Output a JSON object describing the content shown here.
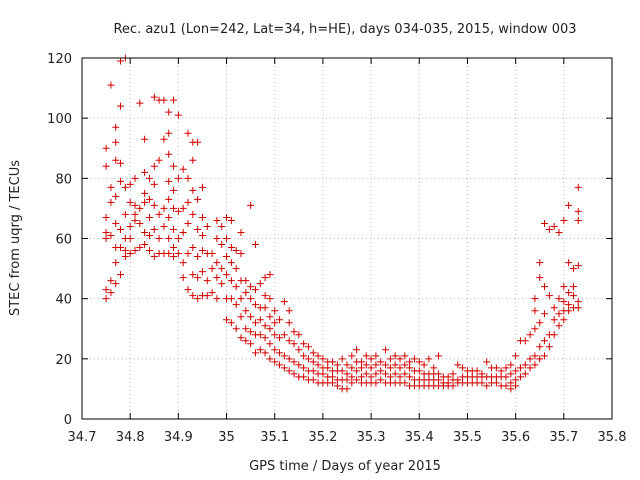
{
  "chart_data": {
    "type": "scatter",
    "title": "Rec. azu1 (Lon=242, Lat=34, h=HE), days 034-035, 2015, window 003",
    "xlabel": "GPS time / Days of year 2015",
    "ylabel": "STEC from uqrg / TECUs",
    "xlim": [
      34.7,
      35.8
    ],
    "ylim": [
      0,
      120
    ],
    "xticks": [
      "34.7",
      "34.8",
      "34.9",
      "35",
      "35.1",
      "35.2",
      "35.3",
      "35.4",
      "35.5",
      "35.6",
      "35.7",
      "35.8"
    ],
    "yticks": [
      "0",
      "20",
      "40",
      "60",
      "80",
      "100",
      "120"
    ],
    "grid": true,
    "marker": "+",
    "color": "#d00000",
    "points": [
      [
        34.75,
        40
      ],
      [
        34.75,
        43
      ],
      [
        34.75,
        60
      ],
      [
        34.75,
        62
      ],
      [
        34.75,
        67
      ],
      [
        34.75,
        84
      ],
      [
        34.75,
        90
      ],
      [
        34.76,
        42
      ],
      [
        34.76,
        46
      ],
      [
        34.76,
        61
      ],
      [
        34.76,
        72
      ],
      [
        34.76,
        77
      ],
      [
        34.76,
        111
      ],
      [
        34.77,
        45
      ],
      [
        34.77,
        52
      ],
      [
        34.77,
        57
      ],
      [
        34.77,
        65
      ],
      [
        34.77,
        74
      ],
      [
        34.77,
        86
      ],
      [
        34.77,
        92
      ],
      [
        34.77,
        97
      ],
      [
        34.78,
        48
      ],
      [
        34.78,
        57
      ],
      [
        34.78,
        63
      ],
      [
        34.78,
        79
      ],
      [
        34.78,
        85
      ],
      [
        34.78,
        104
      ],
      [
        34.78,
        119
      ],
      [
        34.79,
        54
      ],
      [
        34.79,
        56
      ],
      [
        34.79,
        60
      ],
      [
        34.79,
        68
      ],
      [
        34.79,
        77
      ],
      [
        34.79,
        120
      ],
      [
        34.8,
        55
      ],
      [
        34.8,
        60
      ],
      [
        34.8,
        64
      ],
      [
        34.8,
        72
      ],
      [
        34.8,
        78
      ],
      [
        34.81,
        56
      ],
      [
        34.81,
        66
      ],
      [
        34.81,
        68
      ],
      [
        34.81,
        71
      ],
      [
        34.81,
        80
      ],
      [
        34.82,
        57
      ],
      [
        34.82,
        65
      ],
      [
        34.82,
        70
      ],
      [
        34.82,
        105
      ],
      [
        34.83,
        58
      ],
      [
        34.83,
        62
      ],
      [
        34.83,
        72
      ],
      [
        34.83,
        75
      ],
      [
        34.83,
        82
      ],
      [
        34.83,
        93
      ],
      [
        34.84,
        56
      ],
      [
        34.84,
        61
      ],
      [
        34.84,
        67
      ],
      [
        34.84,
        73
      ],
      [
        34.84,
        80
      ],
      [
        34.85,
        54
      ],
      [
        34.85,
        63
      ],
      [
        34.85,
        71
      ],
      [
        34.85,
        78
      ],
      [
        34.85,
        84
      ],
      [
        34.85,
        107
      ],
      [
        34.86,
        55
      ],
      [
        34.86,
        60
      ],
      [
        34.86,
        68
      ],
      [
        34.86,
        86
      ],
      [
        34.86,
        106
      ],
      [
        34.87,
        55
      ],
      [
        34.87,
        64
      ],
      [
        34.87,
        70
      ],
      [
        34.87,
        93
      ],
      [
        34.87,
        106
      ],
      [
        34.88,
        55
      ],
      [
        34.88,
        60
      ],
      [
        34.88,
        67
      ],
      [
        34.88,
        73
      ],
      [
        34.88,
        79
      ],
      [
        34.88,
        88
      ],
      [
        34.88,
        95
      ],
      [
        34.88,
        102
      ],
      [
        34.89,
        54
      ],
      [
        34.89,
        57
      ],
      [
        34.89,
        63
      ],
      [
        34.89,
        70
      ],
      [
        34.89,
        76
      ],
      [
        34.89,
        84
      ],
      [
        34.89,
        106
      ],
      [
        34.9,
        55
      ],
      [
        34.9,
        60
      ],
      [
        34.9,
        69
      ],
      [
        34.9,
        80
      ],
      [
        34.9,
        101
      ],
      [
        34.91,
        47
      ],
      [
        34.91,
        52
      ],
      [
        34.91,
        62
      ],
      [
        34.91,
        70
      ],
      [
        34.91,
        83
      ],
      [
        34.92,
        43
      ],
      [
        34.92,
        55
      ],
      [
        34.92,
        65
      ],
      [
        34.92,
        72
      ],
      [
        34.92,
        80
      ],
      [
        34.92,
        95
      ],
      [
        34.93,
        41
      ],
      [
        34.93,
        48
      ],
      [
        34.93,
        57
      ],
      [
        34.93,
        68
      ],
      [
        34.93,
        76
      ],
      [
        34.93,
        86
      ],
      [
        34.93,
        92
      ],
      [
        34.94,
        40
      ],
      [
        34.94,
        47
      ],
      [
        34.94,
        54
      ],
      [
        34.94,
        63
      ],
      [
        34.94,
        73
      ],
      [
        34.94,
        92
      ],
      [
        34.95,
        41
      ],
      [
        34.95,
        49
      ],
      [
        34.95,
        56
      ],
      [
        34.95,
        61
      ],
      [
        34.95,
        67
      ],
      [
        34.95,
        77
      ],
      [
        34.96,
        41
      ],
      [
        34.96,
        46
      ],
      [
        34.96,
        55
      ],
      [
        34.96,
        64
      ],
      [
        34.97,
        42
      ],
      [
        34.97,
        50
      ],
      [
        34.97,
        55
      ],
      [
        34.98,
        40
      ],
      [
        34.98,
        47
      ],
      [
        34.98,
        52
      ],
      [
        34.98,
        60
      ],
      [
        34.98,
        66
      ],
      [
        34.99,
        45
      ],
      [
        34.99,
        50
      ],
      [
        34.99,
        58
      ],
      [
        34.99,
        64
      ],
      [
        35.0,
        33
      ],
      [
        35.0,
        40
      ],
      [
        35.0,
        48
      ],
      [
        35.0,
        54
      ],
      [
        35.0,
        60
      ],
      [
        35.0,
        67
      ],
      [
        35.01,
        32
      ],
      [
        35.01,
        40
      ],
      [
        35.01,
        46
      ],
      [
        35.01,
        52
      ],
      [
        35.01,
        57
      ],
      [
        35.01,
        66
      ],
      [
        35.02,
        30
      ],
      [
        35.02,
        38
      ],
      [
        35.02,
        44
      ],
      [
        35.02,
        50
      ],
      [
        35.02,
        56
      ],
      [
        35.03,
        27
      ],
      [
        35.03,
        34
      ],
      [
        35.03,
        40
      ],
      [
        35.03,
        46
      ],
      [
        35.03,
        55
      ],
      [
        35.03,
        62
      ],
      [
        35.04,
        26
      ],
      [
        35.04,
        30
      ],
      [
        35.04,
        36
      ],
      [
        35.04,
        42
      ],
      [
        35.04,
        46
      ],
      [
        35.05,
        25
      ],
      [
        35.05,
        29
      ],
      [
        35.05,
        34
      ],
      [
        35.05,
        40
      ],
      [
        35.05,
        44
      ],
      [
        35.05,
        71
      ],
      [
        35.06,
        22
      ],
      [
        35.06,
        28
      ],
      [
        35.06,
        32
      ],
      [
        35.06,
        38
      ],
      [
        35.06,
        43
      ],
      [
        35.06,
        58
      ],
      [
        35.07,
        23
      ],
      [
        35.07,
        28
      ],
      [
        35.07,
        33
      ],
      [
        35.07,
        37
      ],
      [
        35.07,
        45
      ],
      [
        35.08,
        22
      ],
      [
        35.08,
        27
      ],
      [
        35.08,
        31
      ],
      [
        35.08,
        37
      ],
      [
        35.08,
        41
      ],
      [
        35.08,
        47
      ],
      [
        35.09,
        20
      ],
      [
        35.09,
        25
      ],
      [
        35.09,
        30
      ],
      [
        35.09,
        34
      ],
      [
        35.09,
        40
      ],
      [
        35.09,
        48
      ],
      [
        35.1,
        19
      ],
      [
        35.1,
        23
      ],
      [
        35.1,
        28
      ],
      [
        35.1,
        32
      ],
      [
        35.1,
        36
      ],
      [
        35.11,
        18
      ],
      [
        35.11,
        22
      ],
      [
        35.11,
        27
      ],
      [
        35.11,
        33
      ],
      [
        35.12,
        17
      ],
      [
        35.12,
        21
      ],
      [
        35.12,
        28
      ],
      [
        35.12,
        39
      ],
      [
        35.13,
        16
      ],
      [
        35.13,
        20
      ],
      [
        35.13,
        26
      ],
      [
        35.13,
        32
      ],
      [
        35.13,
        36
      ],
      [
        35.14,
        15
      ],
      [
        35.14,
        19
      ],
      [
        35.14,
        25
      ],
      [
        35.14,
        29
      ],
      [
        35.15,
        14
      ],
      [
        35.15,
        18
      ],
      [
        35.15,
        23
      ],
      [
        35.15,
        28
      ],
      [
        35.16,
        14
      ],
      [
        35.16,
        17
      ],
      [
        35.16,
        21
      ],
      [
        35.16,
        25
      ],
      [
        35.17,
        13
      ],
      [
        35.17,
        16
      ],
      [
        35.17,
        20
      ],
      [
        35.17,
        24
      ],
      [
        35.18,
        13
      ],
      [
        35.18,
        16
      ],
      [
        35.18,
        19
      ],
      [
        35.18,
        22
      ],
      [
        35.19,
        12
      ],
      [
        35.19,
        15
      ],
      [
        35.19,
        18
      ],
      [
        35.19,
        21
      ],
      [
        35.2,
        12
      ],
      [
        35.2,
        15
      ],
      [
        35.2,
        17
      ],
      [
        35.2,
        20
      ],
      [
        35.21,
        12
      ],
      [
        35.21,
        14
      ],
      [
        35.21,
        17
      ],
      [
        35.21,
        19
      ],
      [
        35.22,
        12
      ],
      [
        35.22,
        14
      ],
      [
        35.22,
        16
      ],
      [
        35.22,
        19
      ],
      [
        35.23,
        11
      ],
      [
        35.23,
        13
      ],
      [
        35.23,
        16
      ],
      [
        35.23,
        18
      ],
      [
        35.24,
        10
      ],
      [
        35.24,
        13
      ],
      [
        35.24,
        16
      ],
      [
        35.24,
        20
      ],
      [
        35.25,
        10
      ],
      [
        35.25,
        13
      ],
      [
        35.25,
        15
      ],
      [
        35.25,
        18
      ],
      [
        35.26,
        12
      ],
      [
        35.26,
        14
      ],
      [
        35.26,
        17
      ],
      [
        35.26,
        21
      ],
      [
        35.27,
        13
      ],
      [
        35.27,
        16
      ],
      [
        35.27,
        19
      ],
      [
        35.27,
        23
      ],
      [
        35.28,
        12
      ],
      [
        35.28,
        14
      ],
      [
        35.28,
        17
      ],
      [
        35.28,
        19
      ],
      [
        35.29,
        12
      ],
      [
        35.29,
        15
      ],
      [
        35.29,
        18
      ],
      [
        35.29,
        21
      ],
      [
        35.3,
        12
      ],
      [
        35.3,
        14
      ],
      [
        35.3,
        17
      ],
      [
        35.3,
        20
      ],
      [
        35.31,
        12
      ],
      [
        35.31,
        15
      ],
      [
        35.31,
        18
      ],
      [
        35.31,
        21
      ],
      [
        35.32,
        13
      ],
      [
        35.32,
        16
      ],
      [
        35.32,
        19
      ],
      [
        35.33,
        12
      ],
      [
        35.33,
        15
      ],
      [
        35.33,
        18
      ],
      [
        35.33,
        23
      ],
      [
        35.34,
        12
      ],
      [
        35.34,
        14
      ],
      [
        35.34,
        17
      ],
      [
        35.34,
        20
      ],
      [
        35.35,
        12
      ],
      [
        35.35,
        15
      ],
      [
        35.35,
        18
      ],
      [
        35.35,
        21
      ],
      [
        35.36,
        12
      ],
      [
        35.36,
        14
      ],
      [
        35.36,
        17
      ],
      [
        35.36,
        20
      ],
      [
        35.37,
        12
      ],
      [
        35.37,
        15
      ],
      [
        35.37,
        18
      ],
      [
        35.37,
        21
      ],
      [
        35.38,
        11
      ],
      [
        35.38,
        14
      ],
      [
        35.38,
        17
      ],
      [
        35.38,
        19
      ],
      [
        35.39,
        11
      ],
      [
        35.39,
        13
      ],
      [
        35.39,
        16
      ],
      [
        35.39,
        20
      ],
      [
        35.4,
        11
      ],
      [
        35.4,
        13
      ],
      [
        35.4,
        16
      ],
      [
        35.4,
        19
      ],
      [
        35.41,
        11
      ],
      [
        35.41,
        13
      ],
      [
        35.41,
        15
      ],
      [
        35.41,
        18
      ],
      [
        35.42,
        11
      ],
      [
        35.42,
        13
      ],
      [
        35.42,
        15
      ],
      [
        35.42,
        20
      ],
      [
        35.43,
        11
      ],
      [
        35.43,
        13
      ],
      [
        35.43,
        15
      ],
      [
        35.43,
        17
      ],
      [
        35.44,
        11
      ],
      [
        35.44,
        13
      ],
      [
        35.44,
        15
      ],
      [
        35.44,
        21
      ],
      [
        35.45,
        11
      ],
      [
        35.45,
        12
      ],
      [
        35.45,
        14
      ],
      [
        35.46,
        11
      ],
      [
        35.46,
        12
      ],
      [
        35.46,
        14
      ],
      [
        35.47,
        11
      ],
      [
        35.47,
        13
      ],
      [
        35.47,
        15
      ],
      [
        35.48,
        12
      ],
      [
        35.48,
        13
      ],
      [
        35.48,
        18
      ],
      [
        35.49,
        12
      ],
      [
        35.49,
        14
      ],
      [
        35.49,
        17
      ],
      [
        35.5,
        12
      ],
      [
        35.5,
        14
      ],
      [
        35.5,
        16
      ],
      [
        35.51,
        12
      ],
      [
        35.51,
        14
      ],
      [
        35.51,
        16
      ],
      [
        35.52,
        12
      ],
      [
        35.52,
        14
      ],
      [
        35.52,
        16
      ],
      [
        35.53,
        12
      ],
      [
        35.53,
        14
      ],
      [
        35.53,
        15
      ],
      [
        35.54,
        11
      ],
      [
        35.54,
        14
      ],
      [
        35.54,
        19
      ],
      [
        35.55,
        12
      ],
      [
        35.55,
        14
      ],
      [
        35.55,
        17
      ],
      [
        35.56,
        12
      ],
      [
        35.56,
        14
      ],
      [
        35.56,
        17
      ],
      [
        35.57,
        11
      ],
      [
        35.57,
        14
      ],
      [
        35.57,
        16
      ],
      [
        35.58,
        11
      ],
      [
        35.58,
        14
      ],
      [
        35.58,
        17
      ],
      [
        35.59,
        10
      ],
      [
        35.59,
        12
      ],
      [
        35.59,
        15
      ],
      [
        35.59,
        18
      ],
      [
        35.6,
        11
      ],
      [
        35.6,
        13
      ],
      [
        35.6,
        16
      ],
      [
        35.6,
        21
      ],
      [
        35.61,
        14
      ],
      [
        35.61,
        17
      ],
      [
        35.61,
        26
      ],
      [
        35.62,
        15
      ],
      [
        35.62,
        18
      ],
      [
        35.62,
        26
      ],
      [
        35.63,
        17
      ],
      [
        35.63,
        20
      ],
      [
        35.63,
        28
      ],
      [
        35.64,
        18
      ],
      [
        35.64,
        21
      ],
      [
        35.64,
        30
      ],
      [
        35.64,
        36
      ],
      [
        35.64,
        40
      ],
      [
        35.65,
        20
      ],
      [
        35.65,
        24
      ],
      [
        35.65,
        32
      ],
      [
        35.65,
        47
      ],
      [
        35.65,
        52
      ],
      [
        35.66,
        21
      ],
      [
        35.66,
        26
      ],
      [
        35.66,
        35
      ],
      [
        35.66,
        44
      ],
      [
        35.66,
        65
      ],
      [
        35.67,
        24
      ],
      [
        35.67,
        28
      ],
      [
        35.67,
        41
      ],
      [
        35.67,
        63
      ],
      [
        35.68,
        28
      ],
      [
        35.68,
        33
      ],
      [
        35.68,
        37
      ],
      [
        35.68,
        64
      ],
      [
        35.69,
        31
      ],
      [
        35.69,
        35
      ],
      [
        35.69,
        40
      ],
      [
        35.69,
        62
      ],
      [
        35.7,
        33
      ],
      [
        35.7,
        36
      ],
      [
        35.7,
        39
      ],
      [
        35.7,
        44
      ],
      [
        35.7,
        66
      ],
      [
        35.71,
        36
      ],
      [
        35.71,
        38
      ],
      [
        35.71,
        42
      ],
      [
        35.71,
        52
      ],
      [
        35.71,
        71
      ],
      [
        35.72,
        37
      ],
      [
        35.72,
        41
      ],
      [
        35.72,
        44
      ],
      [
        35.72,
        50
      ],
      [
        35.73,
        37
      ],
      [
        35.73,
        39
      ],
      [
        35.73,
        51
      ],
      [
        35.73,
        66
      ],
      [
        35.73,
        69
      ],
      [
        35.73,
        77
      ]
    ]
  }
}
